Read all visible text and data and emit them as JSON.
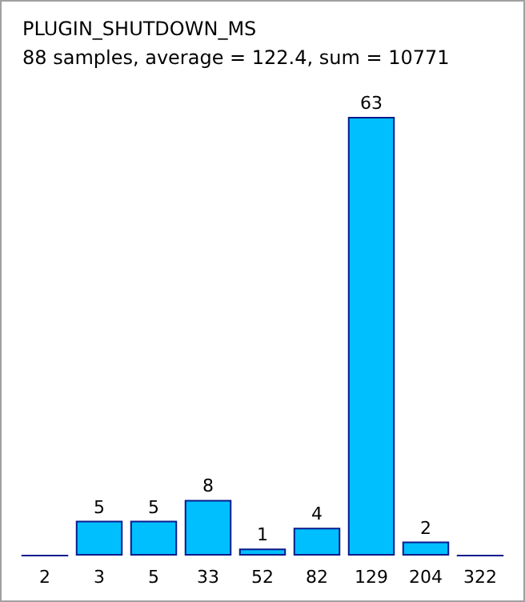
{
  "chart_data": {
    "type": "bar",
    "title": "PLUGIN_SHUTDOWN_MS",
    "subtitle": "88 samples, average = 122.4, sum = 10771",
    "categories": [
      "2",
      "3",
      "5",
      "33",
      "52",
      "82",
      "129",
      "204",
      "322"
    ],
    "values": [
      0,
      5,
      5,
      8,
      1,
      4,
      63,
      2,
      0
    ],
    "value_labels": [
      null,
      "5",
      "5",
      "8",
      "1",
      "4",
      "63",
      "2",
      null
    ],
    "colors": [
      "#0a1a8c",
      "#00bfff",
      "#00bfff",
      "#00bfff",
      "#00bfff",
      "#00bfff",
      "#00bfff",
      "#00bfff",
      "#0a1a8c"
    ]
  }
}
